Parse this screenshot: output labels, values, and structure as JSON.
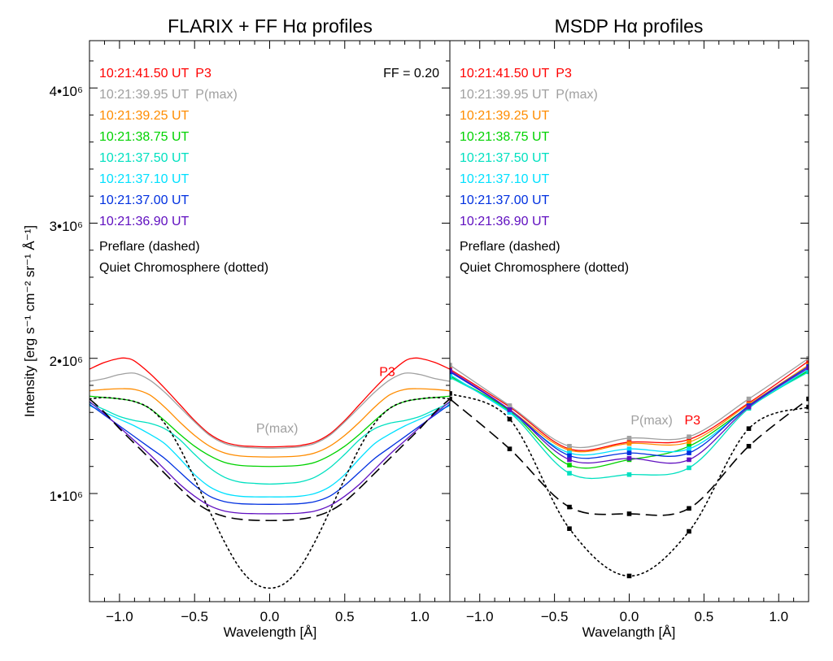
{
  "colors": {
    "t1": "#ff0000",
    "t2": "#a0a0a0",
    "t3": "#ff8c00",
    "t4": "#00d200",
    "t5": "#00e0c0",
    "t6": "#00e0ff",
    "t7": "#0030e0",
    "t8": "#6010c0",
    "preflare": "#000000",
    "quiet": "#000000"
  },
  "ylabel": "Intensity [erg s⁻¹ cm⁻² sr⁻¹ Å⁻¹]",
  "ytick_labels": [
    "1•10⁶",
    "2•10⁶",
    "3•10⁶",
    "4•10⁶"
  ],
  "chart_data": [
    {
      "type": "line",
      "title": "FLARIX + FF Hα profiles",
      "xlabel": "Wavelength [Å]",
      "ylabel": "Intensity [erg s⁻¹ cm⁻² sr⁻¹ Å⁻¹]",
      "xlim": [
        -1.2,
        1.2
      ],
      "ylim": [
        200000,
        4350000
      ],
      "xticks": [
        -1.0,
        -0.5,
        0.0,
        0.5,
        1.0
      ],
      "xtick_labels": [
        "−1.0",
        "−0.5",
        "0.0",
        "0.5",
        "1.0"
      ],
      "yticks": [
        1000000,
        2000000,
        3000000,
        4000000
      ],
      "annotation": "FF = 0.20",
      "legend": [
        {
          "time": "10:21:41.50 UT",
          "tag": "P3",
          "color_key": "t1"
        },
        {
          "time": "10:21:39.95 UT",
          "tag": "P(max)",
          "color_key": "t2"
        },
        {
          "time": "10:21:39.25 UT",
          "tag": "",
          "color_key": "t3"
        },
        {
          "time": "10:21:38.75 UT",
          "tag": "",
          "color_key": "t4"
        },
        {
          "time": "10:21:37.50 UT",
          "tag": "",
          "color_key": "t5"
        },
        {
          "time": "10:21:37.10 UT",
          "tag": "",
          "color_key": "t6"
        },
        {
          "time": "10:21:37.00 UT",
          "tag": "",
          "color_key": "t7"
        },
        {
          "time": "10:21:36.90 UT",
          "tag": "",
          "color_key": "t8"
        }
      ],
      "legend_notes": [
        "Preflare (dashed)",
        "Quiet Chromosphere (dotted)"
      ],
      "labels": [
        {
          "text": "P3",
          "x": 0.73,
          "y": 1870000,
          "color_key": "t1"
        },
        {
          "text": "P(max)",
          "x": -0.09,
          "y": 1450000,
          "color_key": "t2"
        }
      ],
      "series": [
        {
          "name": "10:21:41.50 UT",
          "color_key": "t1",
          "style": "solid",
          "x": [
            -1.2,
            -1.1,
            -1.0,
            -0.95,
            -0.9,
            -0.8,
            -0.7,
            -0.6,
            -0.5,
            -0.4,
            -0.3,
            -0.2,
            -0.1,
            0.0,
            0.1,
            0.2,
            0.3,
            0.4,
            0.5,
            0.6,
            0.7,
            0.8,
            0.9,
            0.95,
            1.0,
            1.1,
            1.2
          ],
          "values": [
            1920000,
            1970000,
            2000000,
            2000000,
            1980000,
            1890000,
            1780000,
            1660000,
            1540000,
            1440000,
            1380000,
            1355000,
            1348000,
            1345000,
            1348000,
            1355000,
            1380000,
            1440000,
            1540000,
            1660000,
            1780000,
            1890000,
            1980000,
            2000000,
            2000000,
            1970000,
            1920000
          ]
        },
        {
          "name": "10:21:39.95 UT",
          "color_key": "t2",
          "style": "solid",
          "x": [
            -1.2,
            -1.1,
            -1.0,
            -0.9,
            -0.8,
            -0.7,
            -0.6,
            -0.5,
            -0.4,
            -0.3,
            -0.2,
            -0.1,
            0.0,
            0.1,
            0.2,
            0.3,
            0.4,
            0.5,
            0.6,
            0.7,
            0.8,
            0.9,
            1.0,
            1.1,
            1.2
          ],
          "values": [
            1830000,
            1850000,
            1880000,
            1890000,
            1840000,
            1750000,
            1640000,
            1530000,
            1430000,
            1370000,
            1345000,
            1338000,
            1335000,
            1338000,
            1345000,
            1370000,
            1430000,
            1530000,
            1640000,
            1750000,
            1840000,
            1890000,
            1880000,
            1850000,
            1830000
          ]
        },
        {
          "name": "10:21:39.25 UT",
          "color_key": "t3",
          "style": "solid",
          "x": [
            -1.2,
            -1.1,
            -1.0,
            -0.9,
            -0.8,
            -0.7,
            -0.6,
            -0.5,
            -0.4,
            -0.3,
            -0.2,
            -0.1,
            0.0,
            0.1,
            0.2,
            0.3,
            0.4,
            0.5,
            0.6,
            0.7,
            0.8,
            0.9,
            1.0,
            1.1,
            1.2
          ],
          "values": [
            1760000,
            1770000,
            1775000,
            1770000,
            1730000,
            1640000,
            1530000,
            1430000,
            1350000,
            1300000,
            1278000,
            1272000,
            1270000,
            1272000,
            1278000,
            1300000,
            1350000,
            1430000,
            1530000,
            1640000,
            1730000,
            1770000,
            1775000,
            1770000,
            1760000
          ]
        },
        {
          "name": "10:21:38.75 UT",
          "color_key": "t4",
          "style": "solid",
          "x": [
            -1.2,
            -1.1,
            -1.0,
            -0.9,
            -0.8,
            -0.7,
            -0.6,
            -0.5,
            -0.4,
            -0.3,
            -0.2,
            -0.1,
            0.0,
            0.1,
            0.2,
            0.3,
            0.4,
            0.5,
            0.6,
            0.7,
            0.8,
            0.9,
            1.0,
            1.1,
            1.2
          ],
          "values": [
            1720000,
            1710000,
            1700000,
            1680000,
            1630000,
            1540000,
            1440000,
            1350000,
            1280000,
            1230000,
            1208000,
            1202000,
            1200000,
            1202000,
            1208000,
            1230000,
            1280000,
            1350000,
            1440000,
            1540000,
            1630000,
            1680000,
            1700000,
            1710000,
            1720000
          ]
        },
        {
          "name": "10:21:37.50 UT",
          "color_key": "t5",
          "style": "solid",
          "x": [
            -1.2,
            -1.1,
            -1.0,
            -0.9,
            -0.8,
            -0.7,
            -0.6,
            -0.5,
            -0.4,
            -0.3,
            -0.2,
            -0.1,
            0.0,
            0.1,
            0.2,
            0.3,
            0.4,
            0.5,
            0.6,
            0.7,
            0.8,
            0.9,
            1.0,
            1.1,
            1.2
          ],
          "values": [
            1670000,
            1620000,
            1570000,
            1540000,
            1520000,
            1480000,
            1400000,
            1290000,
            1190000,
            1120000,
            1085000,
            1075000,
            1070000,
            1075000,
            1085000,
            1120000,
            1190000,
            1290000,
            1400000,
            1480000,
            1520000,
            1540000,
            1570000,
            1620000,
            1670000
          ]
        },
        {
          "name": "10:21:37.10 UT",
          "color_key": "t6",
          "style": "solid",
          "x": [
            -1.2,
            -1.1,
            -1.0,
            -0.9,
            -0.8,
            -0.7,
            -0.6,
            -0.5,
            -0.4,
            -0.3,
            -0.2,
            -0.1,
            0.0,
            0.1,
            0.2,
            0.3,
            0.4,
            0.5,
            0.6,
            0.7,
            0.8,
            0.9,
            1.0,
            1.1,
            1.2
          ],
          "values": [
            1650000,
            1600000,
            1550000,
            1500000,
            1440000,
            1370000,
            1260000,
            1140000,
            1050000,
            1000000,
            980000,
            975000,
            975000,
            975000,
            980000,
            1000000,
            1050000,
            1140000,
            1260000,
            1370000,
            1440000,
            1500000,
            1550000,
            1600000,
            1650000
          ]
        },
        {
          "name": "10:21:37.00 UT",
          "color_key": "t7",
          "style": "solid",
          "x": [
            -1.2,
            -1.1,
            -1.0,
            -0.9,
            -0.8,
            -0.7,
            -0.6,
            -0.5,
            -0.4,
            -0.3,
            -0.2,
            -0.1,
            0.0,
            0.1,
            0.2,
            0.3,
            0.4,
            0.5,
            0.6,
            0.7,
            0.8,
            0.9,
            1.0,
            1.1,
            1.2
          ],
          "values": [
            1660000,
            1580000,
            1500000,
            1420000,
            1340000,
            1260000,
            1160000,
            1060000,
            980000,
            940000,
            925000,
            921000,
            920000,
            921000,
            925000,
            940000,
            980000,
            1060000,
            1160000,
            1260000,
            1340000,
            1420000,
            1500000,
            1580000,
            1660000
          ]
        },
        {
          "name": "10:21:36.90 UT",
          "color_key": "t8",
          "style": "solid",
          "x": [
            -1.2,
            -1.1,
            -1.0,
            -0.9,
            -0.8,
            -0.7,
            -0.6,
            -0.5,
            -0.4,
            -0.3,
            -0.2,
            -0.1,
            0.0,
            0.1,
            0.2,
            0.3,
            0.4,
            0.5,
            0.6,
            0.7,
            0.8,
            0.9,
            1.0,
            1.1,
            1.2
          ],
          "values": [
            1680000,
            1590000,
            1490000,
            1390000,
            1290000,
            1180000,
            1070000,
            980000,
            910000,
            870000,
            855000,
            851000,
            850000,
            851000,
            855000,
            870000,
            910000,
            980000,
            1070000,
            1180000,
            1290000,
            1390000,
            1490000,
            1590000,
            1680000
          ]
        },
        {
          "name": "Preflare",
          "color_key": "preflare",
          "style": "dashed",
          "x": [
            -1.2,
            -1.1,
            -1.0,
            -0.9,
            -0.8,
            -0.7,
            -0.6,
            -0.5,
            -0.4,
            -0.3,
            -0.2,
            -0.1,
            0.0,
            0.1,
            0.2,
            0.3,
            0.4,
            0.5,
            0.6,
            0.7,
            0.8,
            0.9,
            1.0,
            1.1,
            1.2
          ],
          "values": [
            1700000,
            1600000,
            1480000,
            1370000,
            1260000,
            1150000,
            1040000,
            940000,
            870000,
            830000,
            810000,
            802000,
            800000,
            802000,
            810000,
            830000,
            870000,
            940000,
            1040000,
            1150000,
            1260000,
            1370000,
            1480000,
            1600000,
            1700000
          ]
        },
        {
          "name": "Quiet Chromosphere",
          "color_key": "quiet",
          "style": "dotted",
          "x": [
            -1.2,
            -1.1,
            -1.0,
            -0.9,
            -0.8,
            -0.7,
            -0.6,
            -0.5,
            -0.4,
            -0.3,
            -0.2,
            -0.1,
            0.0,
            0.1,
            0.2,
            0.3,
            0.4,
            0.5,
            0.6,
            0.7,
            0.8,
            0.9,
            1.0,
            1.1,
            1.2
          ],
          "values": [
            1700000,
            1710000,
            1700000,
            1680000,
            1630000,
            1520000,
            1340000,
            1110000,
            870000,
            640000,
            450000,
            335000,
            300000,
            335000,
            450000,
            640000,
            870000,
            1110000,
            1340000,
            1520000,
            1630000,
            1680000,
            1700000,
            1710000,
            1700000
          ]
        }
      ]
    },
    {
      "type": "line",
      "title": "MSDP Hα profiles",
      "xlabel": "Wavelangth [Å]",
      "ylabel": "",
      "xlim": [
        -1.2,
        1.2
      ],
      "ylim": [
        200000,
        4350000
      ],
      "xticks": [
        -1.0,
        -0.5,
        0.0,
        0.5,
        1.0
      ],
      "xtick_labels": [
        "−1.0",
        "−0.5",
        "0.0",
        "0.5",
        "1.0"
      ],
      "yticks": [
        1000000,
        2000000,
        3000000,
        4000000
      ],
      "annotation": "",
      "legend": [
        {
          "time": "10:21:41.50 UT",
          "tag": "P3",
          "color_key": "t1"
        },
        {
          "time": "10:21:39.95 UT",
          "tag": "P(max)",
          "color_key": "t2"
        },
        {
          "time": "10:21:39.25 UT",
          "tag": "",
          "color_key": "t3"
        },
        {
          "time": "10:21:38.75 UT",
          "tag": "",
          "color_key": "t4"
        },
        {
          "time": "10:21:37.50 UT",
          "tag": "",
          "color_key": "t5"
        },
        {
          "time": "10:21:37.10 UT",
          "tag": "",
          "color_key": "t6"
        },
        {
          "time": "10:21:37.00 UT",
          "tag": "",
          "color_key": "t7"
        },
        {
          "time": "10:21:36.90 UT",
          "tag": "",
          "color_key": "t8"
        }
      ],
      "legend_notes": [
        "Preflare (dashed)",
        "Quiet Chromosphere (dotted)"
      ],
      "labels": [
        {
          "text": "P(max)",
          "x": 0.01,
          "y": 1510000,
          "color_key": "t2"
        },
        {
          "text": "P3",
          "x": 0.37,
          "y": 1510000,
          "color_key": "t1"
        }
      ],
      "series": [
        {
          "name": "10:21:41.50 UT",
          "color_key": "t1",
          "style": "solid",
          "x": [
            -1.2,
            -0.8,
            -0.4,
            0.0,
            0.4,
            0.8,
            1.2
          ],
          "values": [
            1920000,
            1640000,
            1330000,
            1380000,
            1400000,
            1670000,
            1980000
          ]
        },
        {
          "name": "10:21:39.95 UT",
          "color_key": "t2",
          "style": "solid",
          "x": [
            -1.2,
            -0.8,
            -0.4,
            0.0,
            0.4,
            0.8,
            1.2
          ],
          "values": [
            1950000,
            1650000,
            1350000,
            1410000,
            1420000,
            1700000,
            2000000
          ]
        },
        {
          "name": "10:21:39.25 UT",
          "color_key": "t3",
          "style": "solid",
          "x": [
            -1.2,
            -0.8,
            -0.4,
            0.0,
            0.4,
            0.8,
            1.2
          ],
          "values": [
            1910000,
            1620000,
            1320000,
            1370000,
            1380000,
            1660000,
            1950000
          ]
        },
        {
          "name": "10:21:38.75 UT",
          "color_key": "t4",
          "style": "solid",
          "x": [
            -1.2,
            -0.8,
            -0.4,
            0.0,
            0.4,
            0.8,
            1.2
          ],
          "values": [
            1870000,
            1610000,
            1210000,
            1250000,
            1350000,
            1640000,
            1910000
          ]
        },
        {
          "name": "10:21:37.50 UT",
          "color_key": "t5",
          "style": "solid",
          "x": [
            -1.2,
            -0.8,
            -0.4,
            0.0,
            0.4,
            0.8,
            1.2
          ],
          "values": [
            1860000,
            1600000,
            1150000,
            1140000,
            1190000,
            1630000,
            1900000
          ]
        },
        {
          "name": "10:21:37.10 UT",
          "color_key": "t6",
          "style": "solid",
          "x": [
            -1.2,
            -0.8,
            -0.4,
            0.0,
            0.4,
            0.8,
            1.2
          ],
          "values": [
            1880000,
            1600000,
            1300000,
            1330000,
            1330000,
            1640000,
            1920000
          ]
        },
        {
          "name": "10:21:37.00 UT",
          "color_key": "t7",
          "style": "solid",
          "x": [
            -1.2,
            -0.8,
            -0.4,
            0.0,
            0.4,
            0.8,
            1.2
          ],
          "values": [
            1900000,
            1620000,
            1280000,
            1300000,
            1300000,
            1650000,
            1940000
          ]
        },
        {
          "name": "10:21:36.90 UT",
          "color_key": "t8",
          "style": "solid",
          "x": [
            -1.2,
            -0.8,
            -0.4,
            0.0,
            0.4,
            0.8,
            1.2
          ],
          "values": [
            1910000,
            1620000,
            1250000,
            1260000,
            1250000,
            1640000,
            1930000
          ]
        },
        {
          "name": "Preflare",
          "color_key": "preflare",
          "style": "dashed",
          "x": [
            -1.2,
            -0.8,
            -0.4,
            0.0,
            0.4,
            0.8,
            1.2
          ],
          "values": [
            1700000,
            1330000,
            900000,
            850000,
            890000,
            1350000,
            1700000
          ]
        },
        {
          "name": "Quiet Chromosphere",
          "color_key": "quiet",
          "style": "dotted",
          "x": [
            -1.2,
            -0.8,
            -0.4,
            0.0,
            0.4,
            0.8,
            1.2
          ],
          "values": [
            1740000,
            1550000,
            740000,
            390000,
            720000,
            1480000,
            1640000
          ]
        }
      ]
    }
  ]
}
